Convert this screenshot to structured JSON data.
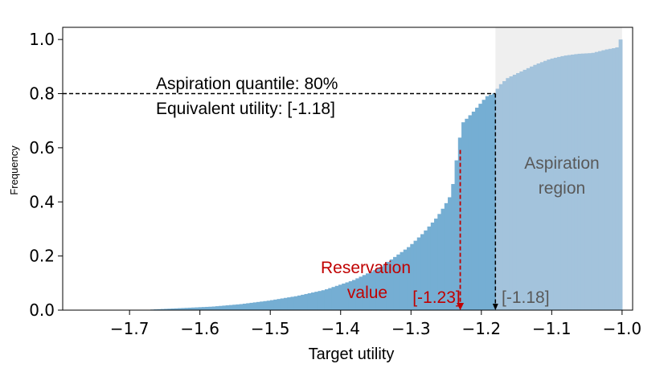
{
  "chart_data": {
    "type": "histogram-cdf",
    "xlabel": "Target utility",
    "ylabel": "Frequency",
    "xlim": [
      -1.795,
      -0.985
    ],
    "ylim": [
      0,
      1.045
    ],
    "xticks": [
      -1.7,
      -1.6,
      -1.5,
      -1.4,
      -1.3,
      -1.2,
      -1.1,
      -1.0
    ],
    "xtick_labels": [
      "−1.7",
      "−1.6",
      "−1.5",
      "−1.4",
      "−1.3",
      "−1.2",
      "−1.1",
      "−1.0"
    ],
    "yticks": [
      0.0,
      0.2,
      0.4,
      0.6,
      0.8,
      1.0
    ],
    "ytick_labels": [
      "0.0",
      "0.2",
      "0.4",
      "0.6",
      "0.8",
      "1.0"
    ],
    "grid": false,
    "colors": {
      "bars_main": "#75aed3",
      "bars_aspiration": "#a3c3dc",
      "aspiration_bg": "#efefef",
      "reservation": "#c00000",
      "quantile_line": "#000000",
      "label_gray": "#595959"
    },
    "cdf_points": [
      [
        -1.68,
        0.0
      ],
      [
        -1.66,
        0.003
      ],
      [
        -1.62,
        0.008
      ],
      [
        -1.58,
        0.013
      ],
      [
        -1.54,
        0.022
      ],
      [
        -1.5,
        0.035
      ],
      [
        -1.46,
        0.052
      ],
      [
        -1.42,
        0.075
      ],
      [
        -1.38,
        0.11
      ],
      [
        -1.34,
        0.16
      ],
      [
        -1.3,
        0.235
      ],
      [
        -1.28,
        0.285
      ],
      [
        -1.26,
        0.345
      ],
      [
        -1.25,
        0.385
      ],
      [
        -1.24,
        0.43
      ],
      [
        -1.23,
        0.61
      ],
      [
        -1.225,
        0.69
      ],
      [
        -1.21,
        0.73
      ],
      [
        -1.2,
        0.76
      ],
      [
        -1.19,
        0.79
      ],
      [
        -1.18,
        0.8
      ],
      [
        -1.17,
        0.835
      ],
      [
        -1.16,
        0.858
      ],
      [
        -1.14,
        0.883
      ],
      [
        -1.12,
        0.908
      ],
      [
        -1.1,
        0.928
      ],
      [
        -1.08,
        0.94
      ],
      [
        -1.06,
        0.947
      ],
      [
        -1.04,
        0.95
      ],
      [
        -1.02,
        0.963
      ],
      [
        -1.005,
        0.97
      ],
      [
        -1.0,
        1.0
      ]
    ],
    "histogram_range": [
      -1.68,
      -1.0
    ],
    "bin_count": 140,
    "aspiration_quantile": 0.8,
    "equivalent_utility": -1.18,
    "reservation_value": -1.23,
    "annotations": {
      "aspiration_quantile_text": "Aspiration quantile: 80%",
      "equivalent_utility_text": "Equivalent utility: [-1.18]",
      "aspiration_region_line1": "Aspiration",
      "aspiration_region_line2": "region",
      "reservation_line1": "Reservation",
      "reservation_line2": "value",
      "reservation_label": "[-1.23]",
      "equivalent_label": "[-1.18]"
    }
  }
}
